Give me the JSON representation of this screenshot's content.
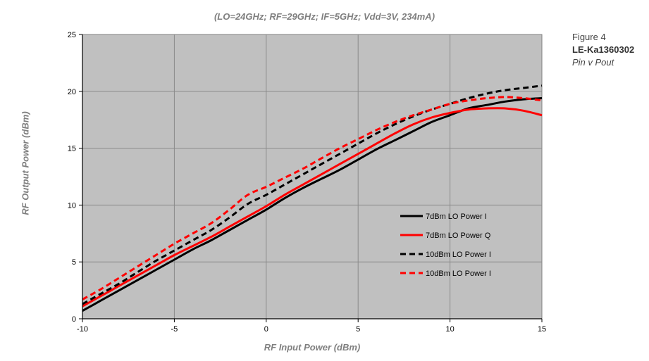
{
  "side_info": {
    "figure": "Figure 4",
    "part_number": "LE-Ka1360302",
    "description": "Pin v Pout"
  },
  "chart_data": {
    "type": "line",
    "title": "",
    "subtitle": "(LO=24GHz; RF=29GHz; IF=5GHz; Vdd=3V, 234mA)",
    "xlabel": "RF Input Power (dBm)",
    "ylabel": "RF Output Power (dBm)",
    "xlim": [
      -10,
      15
    ],
    "ylim": [
      0,
      25
    ],
    "xticks": [
      -10,
      -5,
      0,
      5,
      10,
      15
    ],
    "yticks": [
      0,
      5,
      10,
      15,
      20,
      25
    ],
    "grid": true,
    "plot_background": "#c0c0c0",
    "legend_position": "center-right",
    "x": [
      -10,
      -9,
      -8,
      -7,
      -6,
      -5,
      -4,
      -3,
      -2,
      -1,
      0,
      1,
      2,
      3,
      4,
      5,
      6,
      7,
      8,
      9,
      10,
      11,
      12,
      13,
      14,
      15
    ],
    "series": [
      {
        "name": "7dBm LO Power I",
        "color": "#000000",
        "dash": "solid",
        "values": [
          0.7,
          1.6,
          2.5,
          3.4,
          4.3,
          5.2,
          6.1,
          6.9,
          7.8,
          8.7,
          9.6,
          10.6,
          11.5,
          12.3,
          13.1,
          14.0,
          14.9,
          15.7,
          16.5,
          17.3,
          17.9,
          18.5,
          18.8,
          19.1,
          19.3,
          19.4
        ]
      },
      {
        "name": "7dBm LO Power Q",
        "color": "#ff0000",
        "dash": "solid",
        "values": [
          1.1,
          2.0,
          2.9,
          3.8,
          4.7,
          5.6,
          6.4,
          7.2,
          8.1,
          9.0,
          9.9,
          10.9,
          11.8,
          12.7,
          13.6,
          14.5,
          15.4,
          16.3,
          17.1,
          17.7,
          18.1,
          18.4,
          18.5,
          18.5,
          18.3,
          17.9
        ]
      },
      {
        "name": "10dBm LO Power I",
        "color": "#000000",
        "dash": "dashed",
        "values": [
          1.3,
          2.2,
          3.1,
          4.1,
          5.1,
          6.0,
          6.9,
          7.8,
          8.9,
          10.1,
          10.9,
          11.8,
          12.7,
          13.6,
          14.5,
          15.4,
          16.3,
          17.1,
          17.8,
          18.4,
          18.9,
          19.4,
          19.8,
          20.1,
          20.3,
          20.5
        ]
      },
      {
        "name": "10dBm LO Power I",
        "color": "#ff0000",
        "dash": "dashed",
        "values": [
          1.7,
          2.6,
          3.6,
          4.6,
          5.6,
          6.6,
          7.5,
          8.4,
          9.6,
          10.9,
          11.6,
          12.4,
          13.2,
          14.1,
          15.0,
          15.8,
          16.6,
          17.3,
          17.9,
          18.4,
          18.9,
          19.2,
          19.4,
          19.5,
          19.4,
          19.2
        ]
      }
    ]
  }
}
